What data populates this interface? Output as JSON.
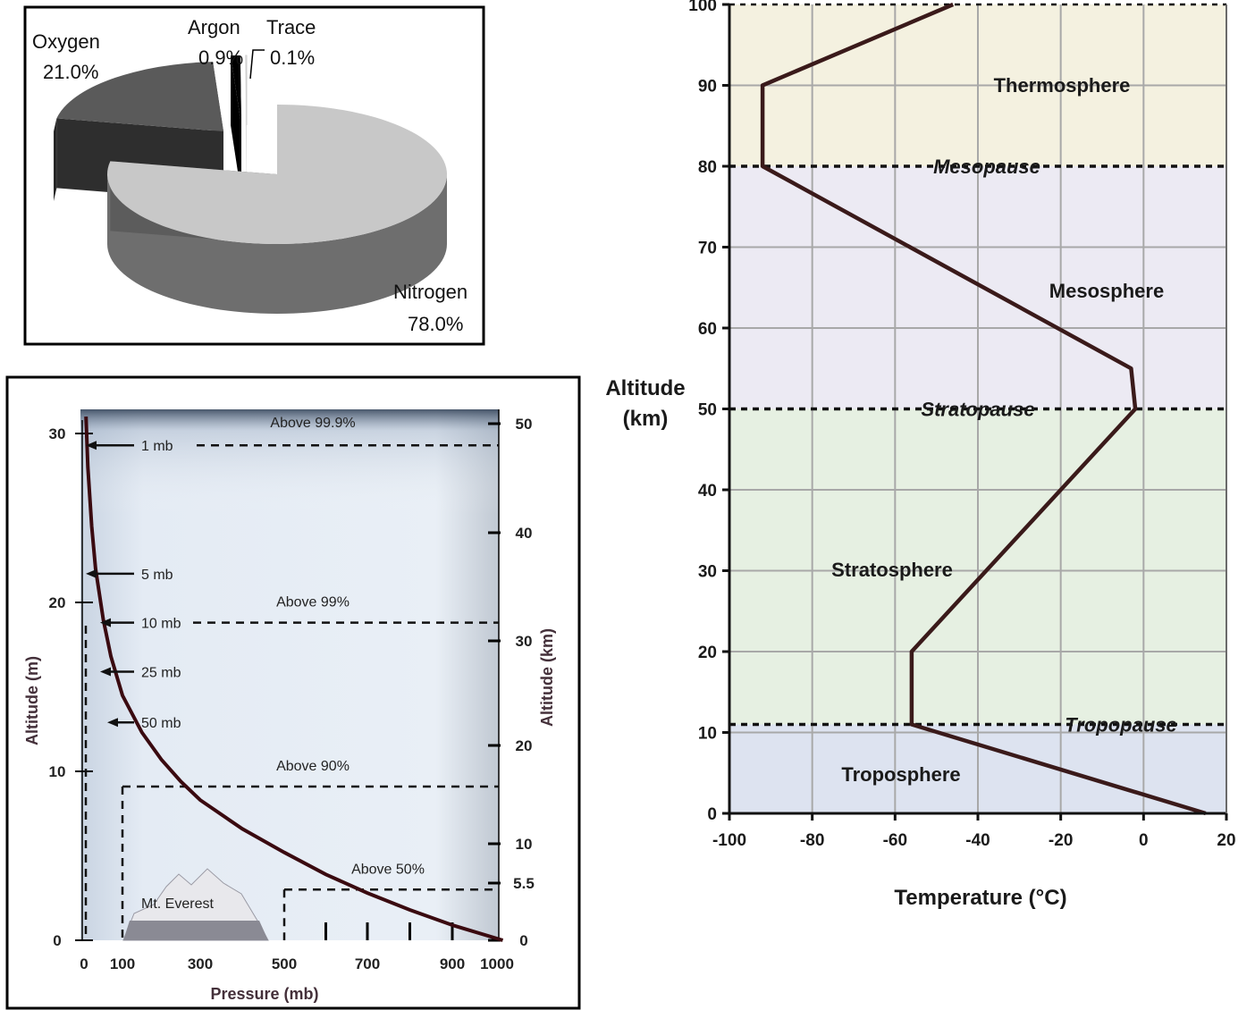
{
  "chart_data": [
    {
      "type": "pie",
      "title": "",
      "slices": [
        {
          "name": "Nitrogen",
          "value": 78.0,
          "label": "78.0%",
          "color": "#c8c8c8",
          "side_color": "#6e6e6e"
        },
        {
          "name": "Oxygen",
          "value": 21.0,
          "label": "21.0%",
          "color": "#5a5a5a",
          "side_color": "#2e2e2e"
        },
        {
          "name": "Argon",
          "value": 0.9,
          "label": "0.9%",
          "color": "#000000",
          "side_color": "#000000"
        },
        {
          "name": "Trace",
          "value": 0.1,
          "label": "0.1%",
          "color": "#ffffff",
          "side_color": "#dddddd"
        }
      ],
      "style": "3d-exploded"
    },
    {
      "type": "line",
      "title": "",
      "xlabel": "Pressure (mb)",
      "ylabel": "Altitude (m)",
      "y2label": "Altitude (km)",
      "x_ticks": [
        "0",
        "100",
        "300",
        "500",
        "700",
        "900",
        "1000"
      ],
      "x_tick_values": [
        0,
        100,
        300,
        500,
        700,
        900,
        1000
      ],
      "y_ticks": [
        "0",
        "10",
        "20",
        "30"
      ],
      "y_tick_values": [
        0,
        10,
        20,
        30
      ],
      "y2_ticks": [
        "0",
        "5.5",
        "10",
        "20",
        "30",
        "40",
        "50"
      ],
      "y2_tick_values": [
        0,
        5.5,
        10,
        20,
        30,
        40,
        50
      ],
      "xlim": [
        0,
        1000
      ],
      "ylim": [
        0,
        30
      ],
      "series": [
        {
          "x": [
            1013,
            900,
            800,
            700,
            600,
            500,
            400,
            300,
            250,
            200,
            150,
            100,
            70,
            50,
            30,
            20,
            10,
            5,
            2,
            1
          ],
          "y": [
            0,
            0.9,
            1.8,
            2.8,
            3.9,
            5.2,
            6.6,
            8.3,
            9.4,
            10.7,
            12.3,
            14.5,
            16.8,
            19.0,
            22.0,
            24.5,
            28.0,
            31.0,
            34.5,
            38.0
          ]
        }
      ],
      "pressure_arrows": [
        {
          "label": "1 mb",
          "y": 29.3
        },
        {
          "label": "5 mb",
          "y": 21.7
        },
        {
          "label": "10 mb",
          "y": 18.8
        },
        {
          "label": "25 mb",
          "y": 15.9
        },
        {
          "label": "50 mb",
          "y": 12.9
        }
      ],
      "mass_lines": [
        {
          "label": "Above 99.9%",
          "y": 29.3
        },
        {
          "label": "Above 99%",
          "y": 18.8
        },
        {
          "label": "Above 90%",
          "y": 9.1
        },
        {
          "label": "Above 50%",
          "y": 3.0
        }
      ],
      "annotation": "Mt. Everest",
      "colors": {
        "line": "#3a0a10",
        "background": "#dce6f2"
      }
    },
    {
      "type": "line",
      "title": "",
      "xlabel": "Temperature (°C)",
      "ylabel": "Altitude (km)",
      "x_ticks": [
        "-100",
        "-80",
        "-60",
        "-40",
        "-20",
        "0",
        "20"
      ],
      "y_ticks": [
        "0",
        "10",
        "20",
        "30",
        "40",
        "50",
        "60",
        "70",
        "80",
        "90",
        "100"
      ],
      "xlim": [
        -100,
        20
      ],
      "ylim": [
        0,
        100
      ],
      "grid": true,
      "series": [
        {
          "x": [
            15,
            -56,
            -56,
            -2,
            -3,
            -92,
            -92,
            -46
          ],
          "y": [
            0,
            11,
            20,
            50,
            55,
            80,
            90,
            100
          ]
        }
      ],
      "boundaries": [
        {
          "label": "Tropopause",
          "y": 11
        },
        {
          "label": "Stratopause",
          "y": 50
        },
        {
          "label": "Mesopause",
          "y": 80
        }
      ],
      "layers": [
        {
          "label": "Troposphere",
          "y_range": [
            0,
            11
          ],
          "color": "#dde3f0"
        },
        {
          "label": "Stratosphere",
          "y_range": [
            11,
            50
          ],
          "color": "#e6f0e2"
        },
        {
          "label": "Mesosphere",
          "y_range": [
            50,
            80
          ],
          "color": "#eceaf3"
        },
        {
          "label": "Thermosphere",
          "y_range": [
            80,
            100
          ],
          "color": "#f4f1e0"
        }
      ],
      "colors": {
        "line": "#3a1a1a"
      }
    }
  ]
}
